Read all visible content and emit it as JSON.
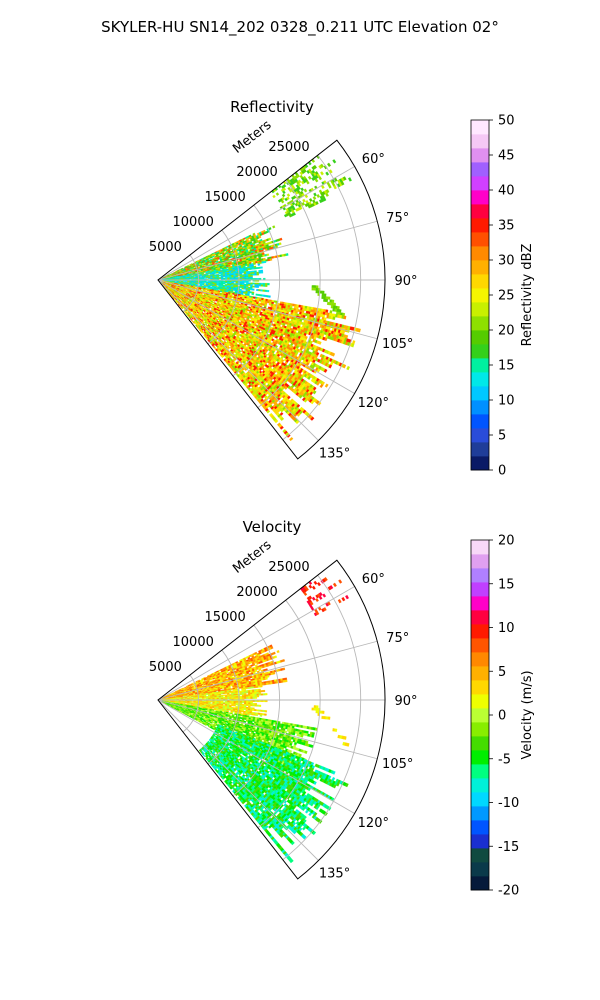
{
  "figure": {
    "suptitle": "SKYLER-HU  SN14_202  0328_0.211 UTC Elevation 02°"
  },
  "chart_data": [
    {
      "type": "polar-ppi",
      "title": "Reflectivity",
      "range_axis_label": "Meters",
      "range_ticks": [
        "5000",
        "10000",
        "15000",
        "20000",
        "25000"
      ],
      "range_max": 28000,
      "azimuth_ticks": [
        "60°",
        "75°",
        "90°",
        "105°",
        "120°",
        "135°"
      ],
      "azimuth_range": [
        52,
        142
      ],
      "colorbar": {
        "label": "Reflectivity dBZ",
        "ticks": [
          "0",
          "5",
          "10",
          "15",
          "20",
          "25",
          "30",
          "35",
          "40",
          "45",
          "50"
        ],
        "min": 0,
        "max": 50
      },
      "echo_regions": [
        {
          "az": [
            52,
            64
          ],
          "r": [
            17500,
            27000
          ],
          "value": "green-speckle"
        },
        {
          "az": [
            64,
            80
          ],
          "r": [
            500,
            16500
          ],
          "value": "green-cyan"
        },
        {
          "az": [
            80,
            100
          ],
          "r": [
            500,
            14000
          ],
          "value": "cyan"
        },
        {
          "az": [
            92,
            104
          ],
          "r": [
            19000,
            24500
          ],
          "value": "green-line"
        },
        {
          "az": [
            100,
            140
          ],
          "r": [
            500,
            26000
          ],
          "value": "yellow-orange"
        }
      ]
    },
    {
      "type": "polar-ppi",
      "title": "Velocity",
      "range_axis_label": "Meters",
      "range_ticks": [
        "5000",
        "10000",
        "15000",
        "20000",
        "25000"
      ],
      "range_max": 28000,
      "azimuth_ticks": [
        "60°",
        "75°",
        "90°",
        "105°",
        "120°",
        "135°"
      ],
      "azimuth_range": [
        52,
        142
      ],
      "colorbar": {
        "label": "Velocity (m/s)",
        "ticks": [
          "-20",
          "-15",
          "-10",
          "-5",
          "0",
          "5",
          "10",
          "15",
          "20"
        ],
        "min": -20,
        "max": 20
      },
      "echo_regions": [
        {
          "az": [
            52,
            62
          ],
          "r": [
            22000,
            27500
          ],
          "value": "red-speckle"
        },
        {
          "az": [
            64,
            82
          ],
          "r": [
            500,
            16500
          ],
          "value": "orange-yellow"
        },
        {
          "az": [
            82,
            100
          ],
          "r": [
            500,
            13500
          ],
          "value": "yellow"
        },
        {
          "az": [
            92,
            104
          ],
          "r": [
            19000,
            24500
          ],
          "value": "yellow-line"
        },
        {
          "az": [
            100,
            118
          ],
          "r": [
            500,
            20000
          ],
          "value": "green"
        },
        {
          "az": [
            112,
            140
          ],
          "r": [
            8000,
            26000
          ],
          "value": "bright-green"
        }
      ]
    }
  ]
}
